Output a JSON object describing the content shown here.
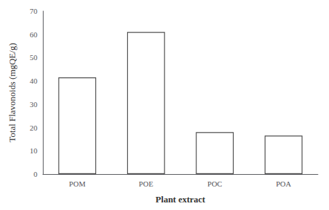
{
  "chart_data": {
    "type": "bar",
    "categories": [
      "POM",
      "POE",
      "POC",
      "POA"
    ],
    "values": [
      41.5,
      61.0,
      18.0,
      16.5
    ],
    "color": "#ffffff",
    "xlabel": "Plant extract",
    "ylabel": "Total Flavonoids (mgQE/g)",
    "ylim": [
      0,
      70
    ],
    "yticks": [
      0,
      10,
      20,
      30,
      40,
      50,
      60,
      70
    ],
    "grid": false
  }
}
